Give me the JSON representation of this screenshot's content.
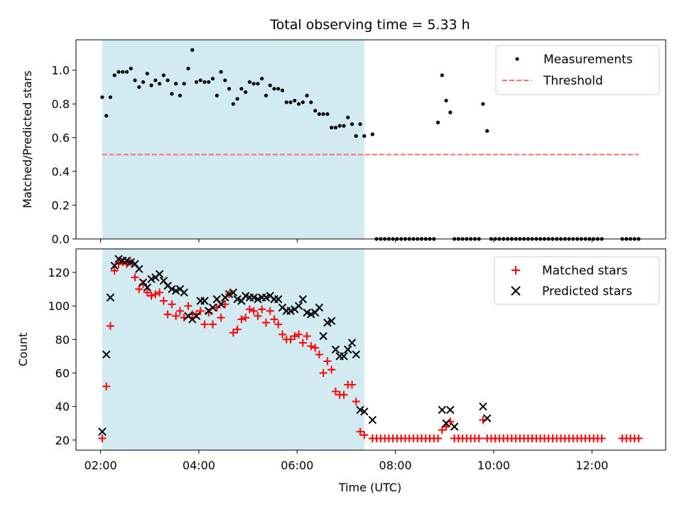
{
  "title": "Total observing time = 5.33 h",
  "colors": {
    "shade": "#add8e6",
    "threshold": "#ff6b6b",
    "matched": "#ff0000",
    "predicted": "#000000",
    "measure": "#000000"
  },
  "chart_data": [
    {
      "type": "scatter",
      "panel": "top",
      "ylabel": "Matched/Predicted stars",
      "xlim": [
        "01:30",
        "13:30"
      ],
      "ylim": [
        0,
        1.18
      ],
      "yticks": [
        0.0,
        0.2,
        0.4,
        0.6,
        0.8,
        1.0
      ],
      "ytick_labels": [
        "0.0",
        "0.2",
        "0.4",
        "0.6",
        "0.8",
        "1.0"
      ],
      "shaded_span": [
        "02:02",
        "07:22"
      ],
      "threshold": {
        "name": "Threshold",
        "value": 0.5,
        "x_range": [
          "02:02",
          "12:57"
        ],
        "style": "dashed"
      },
      "legend": {
        "position": "upper right",
        "entries": [
          "Measurements",
          "Threshold"
        ]
      },
      "series": [
        {
          "name": "Measurements",
          "marker": "dot",
          "x": [
            "02:02",
            "02:07",
            "02:12",
            "02:17",
            "02:22",
            "02:27",
            "02:32",
            "02:37",
            "02:42",
            "02:47",
            "02:52",
            "02:57",
            "03:02",
            "03:07",
            "03:12",
            "03:17",
            "03:22",
            "03:27",
            "03:32",
            "03:37",
            "03:42",
            "03:47",
            "03:52",
            "03:57",
            "04:02",
            "04:07",
            "04:12",
            "04:17",
            "04:22",
            "04:27",
            "04:32",
            "04:37",
            "04:42",
            "04:47",
            "04:52",
            "04:57",
            "05:02",
            "05:07",
            "05:12",
            "05:17",
            "05:22",
            "05:27",
            "05:32",
            "05:37",
            "05:42",
            "05:47",
            "05:52",
            "05:57",
            "06:02",
            "06:07",
            "06:12",
            "06:17",
            "06:22",
            "06:27",
            "06:32",
            "06:37",
            "06:42",
            "06:47",
            "06:52",
            "06:57",
            "07:02",
            "07:07",
            "07:12",
            "07:17",
            "07:22",
            "07:32",
            "07:37",
            "07:42",
            "07:47",
            "07:52",
            "07:57",
            "08:02",
            "08:07",
            "08:12",
            "08:17",
            "08:22",
            "08:27",
            "08:32",
            "08:37",
            "08:42",
            "08:47",
            "08:52",
            "08:57",
            "09:02",
            "09:07",
            "09:12",
            "09:17",
            "09:22",
            "09:27",
            "09:32",
            "09:37",
            "09:42",
            "09:47",
            "09:52",
            "09:57",
            "10:02",
            "10:07",
            "10:12",
            "10:17",
            "10:22",
            "10:27",
            "10:32",
            "10:37",
            "10:42",
            "10:47",
            "10:52",
            "10:57",
            "11:02",
            "11:07",
            "11:12",
            "11:17",
            "11:22",
            "11:27",
            "11:32",
            "11:37",
            "11:42",
            "11:47",
            "11:52",
            "11:57",
            "12:02",
            "12:07",
            "12:12",
            "12:37",
            "12:42",
            "12:47",
            "12:52",
            "12:57"
          ],
          "y": [
            0.84,
            0.73,
            0.84,
            0.97,
            0.99,
            0.99,
            0.99,
            1.01,
            0.94,
            0.9,
            0.93,
            0.98,
            0.91,
            0.94,
            0.92,
            0.97,
            0.94,
            0.86,
            0.92,
            0.85,
            0.92,
            1.01,
            1.12,
            0.93,
            0.94,
            0.93,
            0.93,
            0.95,
            0.85,
            0.99,
            0.94,
            0.89,
            0.8,
            0.83,
            0.89,
            0.87,
            0.93,
            0.92,
            0.92,
            0.95,
            0.85,
            0.91,
            0.89,
            0.89,
            0.88,
            0.81,
            0.81,
            0.82,
            0.8,
            0.81,
            0.85,
            0.81,
            0.76,
            0.74,
            0.74,
            0.74,
            0.66,
            0.66,
            0.67,
            0.67,
            0.72,
            0.68,
            0.61,
            0.68,
            0.61,
            0.62,
            0.0,
            0.0,
            0.0,
            0.0,
            0.0,
            0.0,
            0.0,
            0.0,
            0.0,
            0.0,
            0.0,
            0.0,
            0.0,
            0.0,
            0.0,
            0.69,
            0.97,
            0.82,
            0.75,
            0.0,
            0.0,
            0.0,
            0.0,
            0.0,
            0.0,
            0.0,
            0.8,
            0.64,
            0.0,
            0.0,
            0.0,
            0.0,
            0.0,
            0.0,
            0.0,
            0.0,
            0.0,
            0.0,
            0.0,
            0.0,
            0.0,
            0.0,
            0.0,
            0.0,
            0.0,
            0.0,
            0.0,
            0.0,
            0.0,
            0.0,
            0.0,
            0.0,
            0.0,
            0.0,
            0.0,
            0.0,
            0.0,
            0.0,
            0.0,
            0.0,
            0.0
          ]
        }
      ]
    },
    {
      "type": "scatter",
      "panel": "bottom",
      "ylabel": "Count",
      "xlabel": "Time (UTC)",
      "xlim": [
        "01:30",
        "13:30"
      ],
      "ylim": [
        14,
        134
      ],
      "yticks": [
        20,
        40,
        60,
        80,
        100,
        120
      ],
      "ytick_labels": [
        "20",
        "40",
        "60",
        "80",
        "100",
        "120"
      ],
      "xticks": [
        "02:00",
        "04:00",
        "06:00",
        "08:00",
        "10:00",
        "12:00"
      ],
      "xtick_labels": [
        "02:00",
        "04:00",
        "06:00",
        "08:00",
        "10:00",
        "12:00"
      ],
      "shaded_span": [
        "02:02",
        "07:22"
      ],
      "legend": {
        "position": "upper right",
        "entries": [
          "Matched stars",
          "Predicted stars"
        ]
      },
      "series": [
        {
          "name": "Matched stars",
          "marker": "plus",
          "x": [
            "02:02",
            "02:07",
            "02:12",
            "02:17",
            "02:22",
            "02:27",
            "02:32",
            "02:37",
            "02:42",
            "02:47",
            "02:52",
            "02:57",
            "03:02",
            "03:07",
            "03:12",
            "03:17",
            "03:22",
            "03:27",
            "03:32",
            "03:37",
            "03:42",
            "03:47",
            "03:52",
            "03:57",
            "04:02",
            "04:07",
            "04:12",
            "04:17",
            "04:22",
            "04:27",
            "04:32",
            "04:37",
            "04:42",
            "04:47",
            "04:52",
            "04:57",
            "05:02",
            "05:07",
            "05:12",
            "05:17",
            "05:22",
            "05:27",
            "05:32",
            "05:37",
            "05:42",
            "05:47",
            "05:52",
            "05:57",
            "06:02",
            "06:07",
            "06:12",
            "06:17",
            "06:22",
            "06:27",
            "06:32",
            "06:37",
            "06:42",
            "06:47",
            "06:52",
            "06:57",
            "07:02",
            "07:07",
            "07:12",
            "07:17",
            "07:22",
            "07:32",
            "07:37",
            "07:42",
            "07:47",
            "07:52",
            "07:57",
            "08:02",
            "08:07",
            "08:12",
            "08:17",
            "08:22",
            "08:27",
            "08:32",
            "08:37",
            "08:42",
            "08:47",
            "08:52",
            "08:57",
            "09:02",
            "09:07",
            "09:12",
            "09:17",
            "09:22",
            "09:27",
            "09:32",
            "09:37",
            "09:42",
            "09:47",
            "09:52",
            "09:57",
            "10:02",
            "10:07",
            "10:12",
            "10:17",
            "10:22",
            "10:27",
            "10:32",
            "10:37",
            "10:42",
            "10:47",
            "10:52",
            "10:57",
            "11:02",
            "11:07",
            "11:12",
            "11:17",
            "11:22",
            "11:27",
            "11:32",
            "11:37",
            "11:42",
            "11:47",
            "11:52",
            "11:57",
            "12:02",
            "12:07",
            "12:12",
            "12:37",
            "12:42",
            "12:47",
            "12:52",
            "12:57"
          ],
          "y": [
            21,
            52,
            88,
            121,
            125,
            126,
            125,
            126,
            117,
            110,
            113,
            108,
            106,
            107,
            108,
            103,
            95,
            101,
            94,
            97,
            93,
            100,
            95,
            95,
            97,
            89,
            96,
            89,
            99,
            93,
            101,
            107,
            84,
            86,
            92,
            93,
            98,
            97,
            94,
            98,
            90,
            97,
            92,
            89,
            83,
            80,
            80,
            82,
            83,
            78,
            82,
            76,
            75,
            71,
            60,
            67,
            62,
            49,
            47,
            47,
            53,
            53,
            43,
            25,
            23,
            21,
            21,
            21,
            21,
            21,
            21,
            21,
            21,
            21,
            21,
            21,
            21,
            21,
            21,
            21,
            21,
            21,
            26,
            28,
            31,
            21,
            21,
            21,
            21,
            21,
            21,
            21,
            32,
            21,
            21,
            21,
            21,
            21,
            21,
            21,
            21,
            21,
            21,
            21,
            21,
            21,
            21,
            21,
            21,
            21,
            21,
            21,
            21,
            21,
            21,
            21,
            21,
            21,
            21,
            21,
            21,
            21,
            21,
            21,
            21,
            21,
            21
          ]
        },
        {
          "name": "Predicted stars",
          "marker": "x",
          "x": [
            "02:02",
            "02:07",
            "02:12",
            "02:17",
            "02:22",
            "02:27",
            "02:32",
            "02:37",
            "02:42",
            "02:47",
            "02:52",
            "02:57",
            "03:02",
            "03:07",
            "03:12",
            "03:17",
            "03:22",
            "03:27",
            "03:32",
            "03:37",
            "03:42",
            "03:47",
            "03:52",
            "03:57",
            "04:02",
            "04:07",
            "04:12",
            "04:17",
            "04:22",
            "04:27",
            "04:32",
            "04:37",
            "04:42",
            "04:47",
            "04:52",
            "04:57",
            "05:02",
            "05:07",
            "05:12",
            "05:17",
            "05:22",
            "05:27",
            "05:32",
            "05:37",
            "05:42",
            "05:47",
            "05:52",
            "05:57",
            "06:02",
            "06:07",
            "06:12",
            "06:17",
            "06:22",
            "06:27",
            "06:32",
            "06:37",
            "06:42",
            "06:47",
            "06:52",
            "06:57",
            "07:02",
            "07:07",
            "07:12",
            "07:17",
            "07:22",
            "07:32",
            "08:57",
            "09:02",
            "09:07",
            "09:12",
            "09:47",
            "09:52"
          ],
          "y": [
            25,
            71,
            105,
            124,
            128,
            127,
            127,
            126,
            125,
            122,
            114,
            111,
            116,
            117,
            119,
            115,
            112,
            110,
            109,
            110,
            108,
            94,
            92,
            94,
            103,
            103,
            97,
            99,
            104,
            101,
            105,
            107,
            108,
            104,
            103,
            106,
            105,
            105,
            104,
            105,
            105,
            106,
            104,
            104,
            99,
            97,
            97,
            98,
            100,
            104,
            96,
            95,
            96,
            99,
            82,
            90,
            91,
            74,
            70,
            70,
            74,
            78,
            71,
            38,
            37,
            32,
            38,
            30,
            38,
            28,
            40,
            33
          ]
        }
      ]
    }
  ]
}
